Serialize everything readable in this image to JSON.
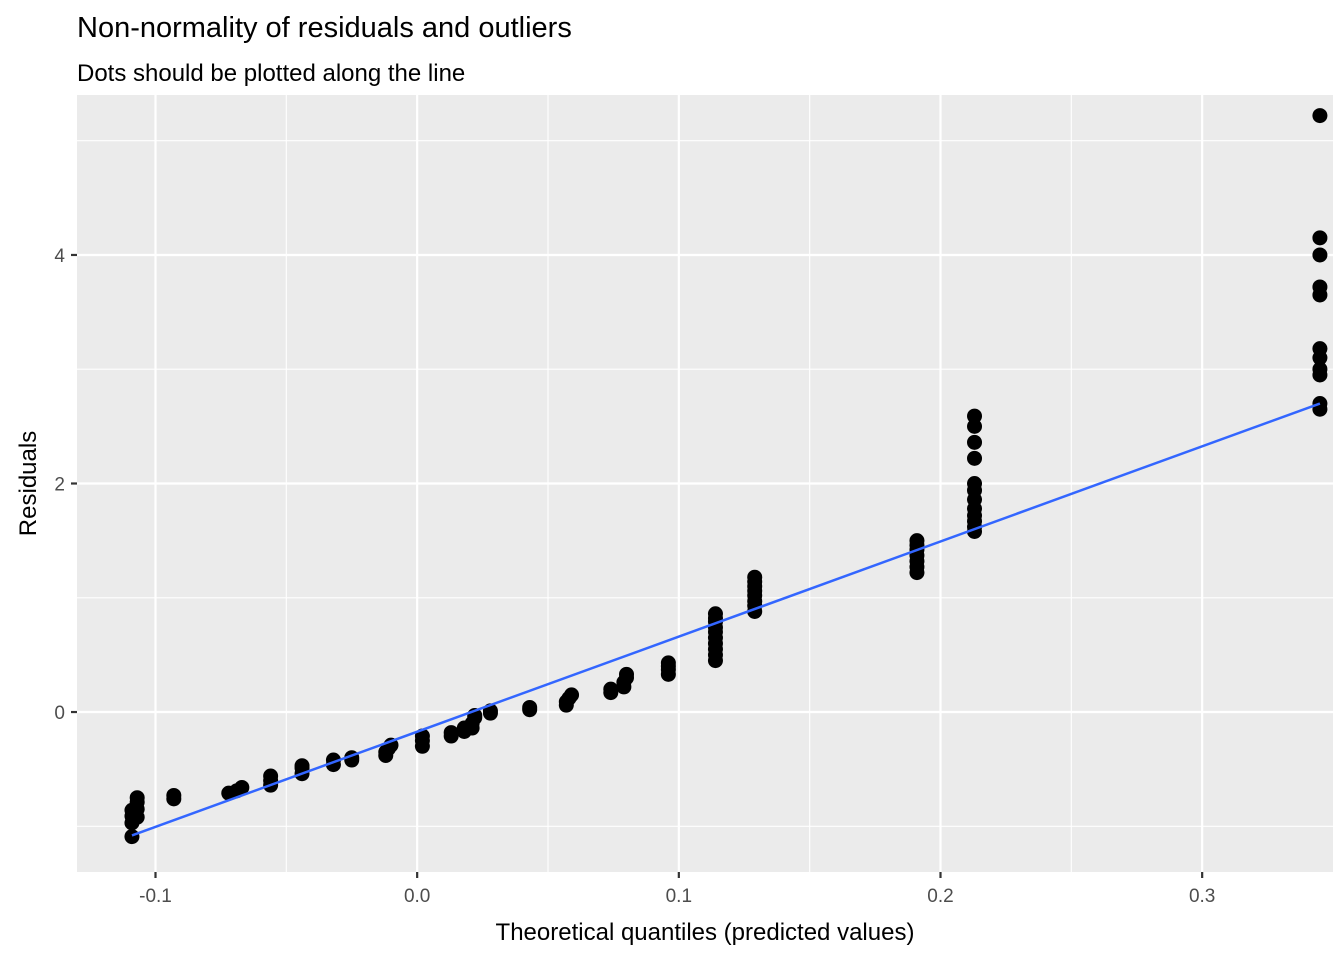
{
  "chart_data": {
    "type": "scatter",
    "title": "Non-normality of residuals and outliers",
    "subtitle": "Dots should be plotted along the line",
    "xlabel": "Theoretical quantiles (predicted values)",
    "ylabel": "Residuals",
    "xlim": [
      -0.13,
      0.35
    ],
    "ylim": [
      -1.4,
      5.4
    ],
    "x_ticks": [
      -0.1,
      0.0,
      0.1,
      0.2,
      0.3
    ],
    "x_tick_labels": [
      "-0.1",
      "0.0",
      "0.1",
      "0.2",
      "0.3"
    ],
    "y_ticks": [
      0,
      2,
      4
    ],
    "y_tick_labels": [
      "0",
      "2",
      "4"
    ],
    "grid": true,
    "background": "#ebebeb",
    "grid_color": "#ffffff",
    "point_color": "#000000",
    "line_color": "#3366ff",
    "line": {
      "x": [
        -0.109,
        0.345
      ],
      "y": [
        -1.08,
        2.7
      ]
    },
    "points": [
      [
        -0.109,
        -1.09
      ],
      [
        -0.109,
        -0.97
      ],
      [
        -0.109,
        -0.91
      ],
      [
        -0.109,
        -0.86
      ],
      [
        -0.107,
        -0.92
      ],
      [
        -0.107,
        -0.85
      ],
      [
        -0.107,
        -0.79
      ],
      [
        -0.107,
        -0.75
      ],
      [
        -0.093,
        -0.73
      ],
      [
        -0.093,
        -0.76
      ],
      [
        -0.072,
        -0.71
      ],
      [
        -0.069,
        -0.69
      ],
      [
        -0.067,
        -0.66
      ],
      [
        -0.056,
        -0.64
      ],
      [
        -0.056,
        -0.6
      ],
      [
        -0.056,
        -0.56
      ],
      [
        -0.044,
        -0.54
      ],
      [
        -0.044,
        -0.49
      ],
      [
        -0.044,
        -0.47
      ],
      [
        -0.032,
        -0.46
      ],
      [
        -0.032,
        -0.42
      ],
      [
        -0.025,
        -0.42
      ],
      [
        -0.025,
        -0.4
      ],
      [
        -0.012,
        -0.38
      ],
      [
        -0.012,
        -0.35
      ],
      [
        -0.011,
        -0.32
      ],
      [
        -0.01,
        -0.29
      ],
      [
        0.002,
        -0.3
      ],
      [
        0.002,
        -0.25
      ],
      [
        0.002,
        -0.21
      ],
      [
        0.013,
        -0.21
      ],
      [
        0.013,
        -0.18
      ],
      [
        0.018,
        -0.17
      ],
      [
        0.018,
        -0.14
      ],
      [
        0.021,
        -0.14
      ],
      [
        0.021,
        -0.1
      ],
      [
        0.022,
        -0.05
      ],
      [
        0.022,
        -0.03
      ],
      [
        0.028,
        -0.01
      ],
      [
        0.028,
        0.01
      ],
      [
        0.043,
        0.02
      ],
      [
        0.043,
        0.04
      ],
      [
        0.057,
        0.06
      ],
      [
        0.057,
        0.09
      ],
      [
        0.058,
        0.12
      ],
      [
        0.059,
        0.15
      ],
      [
        0.074,
        0.17
      ],
      [
        0.074,
        0.2
      ],
      [
        0.079,
        0.22
      ],
      [
        0.079,
        0.26
      ],
      [
        0.08,
        0.3
      ],
      [
        0.08,
        0.33
      ],
      [
        0.096,
        0.33
      ],
      [
        0.096,
        0.37
      ],
      [
        0.096,
        0.4
      ],
      [
        0.096,
        0.43
      ],
      [
        0.114,
        0.45
      ],
      [
        0.114,
        0.5
      ],
      [
        0.114,
        0.55
      ],
      [
        0.114,
        0.6
      ],
      [
        0.114,
        0.65
      ],
      [
        0.114,
        0.7
      ],
      [
        0.114,
        0.74
      ],
      [
        0.114,
        0.79
      ],
      [
        0.114,
        0.82
      ],
      [
        0.114,
        0.86
      ],
      [
        0.129,
        0.88
      ],
      [
        0.129,
        0.93
      ],
      [
        0.129,
        0.97
      ],
      [
        0.129,
        1.02
      ],
      [
        0.129,
        1.06
      ],
      [
        0.129,
        1.1
      ],
      [
        0.129,
        1.14
      ],
      [
        0.129,
        1.18
      ],
      [
        0.191,
        1.22
      ],
      [
        0.191,
        1.27
      ],
      [
        0.191,
        1.32
      ],
      [
        0.191,
        1.37
      ],
      [
        0.191,
        1.42
      ],
      [
        0.191,
        1.46
      ],
      [
        0.191,
        1.5
      ],
      [
        0.213,
        1.58
      ],
      [
        0.213,
        1.62
      ],
      [
        0.213,
        1.67
      ],
      [
        0.213,
        1.72
      ],
      [
        0.213,
        1.78
      ],
      [
        0.213,
        1.86
      ],
      [
        0.213,
        1.94
      ],
      [
        0.213,
        2.0
      ],
      [
        0.213,
        2.22
      ],
      [
        0.213,
        2.36
      ],
      [
        0.213,
        2.5
      ],
      [
        0.213,
        2.59
      ],
      [
        0.345,
        2.65
      ],
      [
        0.345,
        2.7
      ],
      [
        0.345,
        2.95
      ],
      [
        0.345,
        3.0
      ],
      [
        0.345,
        3.1
      ],
      [
        0.345,
        3.18
      ],
      [
        0.345,
        3.65
      ],
      [
        0.345,
        3.72
      ],
      [
        0.345,
        4.0
      ],
      [
        0.345,
        4.15
      ],
      [
        0.345,
        5.22
      ]
    ]
  }
}
